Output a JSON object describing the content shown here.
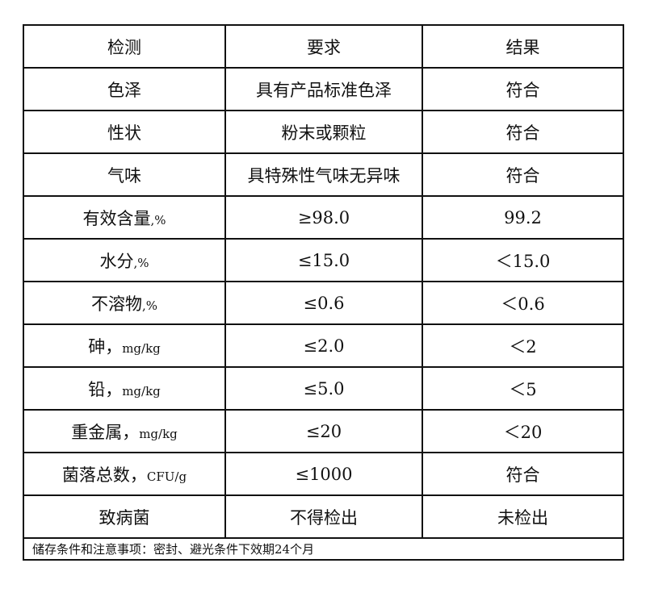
{
  "header": [
    "检测",
    "要求",
    "结果"
  ],
  "rows": [
    {
      "item": "色泽",
      "unit": "",
      "requirement": "具有产品标准色泽",
      "result": "符合"
    },
    {
      "item": "性状",
      "unit": "",
      "requirement": "粉末或颗粒",
      "result": "符合"
    },
    {
      "item": "气味",
      "unit": "",
      "requirement": "具特殊性气味无异味",
      "result": "符合"
    },
    {
      "item": "有效含量",
      "unit": ",%",
      "requirement": "≥98.0",
      "result": "99.2"
    },
    {
      "item": "水分",
      "unit": ",%",
      "requirement": "≤15.0",
      "result": "＜15.0"
    },
    {
      "item": "不溶物",
      "unit": ",%",
      "requirement": "≤0.6",
      "result": "＜0.6"
    },
    {
      "item": "砷，",
      "unit": "mg/kg",
      "requirement": "≤2.0",
      "result": "＜2"
    },
    {
      "item": "铅，",
      "unit": "mg/kg",
      "requirement": "≤5.0",
      "result": "＜5"
    },
    {
      "item": "重金属，",
      "unit": "mg/kg",
      "requirement": "≤20",
      "result": "＜20"
    },
    {
      "item": "菌落总数，",
      "unit": "CFU/g",
      "requirement": "≤1000",
      "result": "符合"
    },
    {
      "item": "致病菌",
      "unit": "",
      "requirement": "不得检出",
      "result": "未检出"
    }
  ],
  "footer": "储存条件和注意事项：密封、避光条件下效期24个月"
}
